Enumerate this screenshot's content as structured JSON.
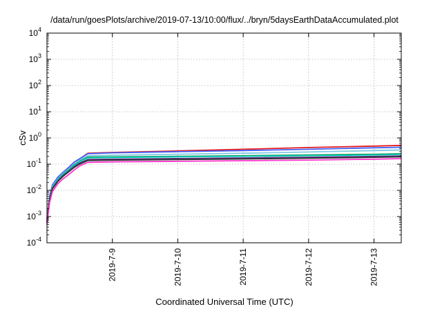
{
  "chart_data": {
    "type": "line",
    "title": "/data/run/goesPlots/archive/2019-07-13/10:00/flux/../bryn/5daysEarthDataAccumulated.plot",
    "xlabel": "Coordinated Universal Time (UTC)",
    "ylabel": "cSv",
    "y_scale": "log",
    "ylim": [
      0.0001,
      10000
    ],
    "xlim": [
      "2019-07-08T00:00",
      "2019-07-13T10:00"
    ],
    "grid": true,
    "legend": "none",
    "y_ticks": [
      {
        "value": 0.0001,
        "base": "10",
        "exp": "-4"
      },
      {
        "value": 0.001,
        "base": "10",
        "exp": "-3"
      },
      {
        "value": 0.01,
        "base": "10",
        "exp": "-2"
      },
      {
        "value": 0.1,
        "base": "10",
        "exp": "-1"
      },
      {
        "value": 1,
        "base": "10",
        "exp": "0"
      },
      {
        "value": 10,
        "base": "10",
        "exp": "1"
      },
      {
        "value": 100,
        "base": "10",
        "exp": "2"
      },
      {
        "value": 1000,
        "base": "10",
        "exp": "3"
      },
      {
        "value": 10000,
        "base": "10",
        "exp": "4"
      }
    ],
    "x_ticks": [
      {
        "value": "2019-07-09T00:00",
        "label": "2019-7-9"
      },
      {
        "value": "2019-07-10T00:00",
        "label": "2019-7-10"
      },
      {
        "value": "2019-07-11T00:00",
        "label": "2019-7-11"
      },
      {
        "value": "2019-07-12T00:00",
        "label": "2019-7-12"
      },
      {
        "value": "2019-07-13T00:00",
        "label": "2019-7-13"
      }
    ],
    "series": [
      {
        "color": "#e41a1c",
        "points": [
          [
            "2019-07-08T00:00",
            0.0008
          ],
          [
            "2019-07-08T01:00",
            0.006
          ],
          [
            "2019-07-08T02:00",
            0.016
          ],
          [
            "2019-07-08T04:00",
            0.032
          ],
          [
            "2019-07-08T06:00",
            0.05
          ],
          [
            "2019-07-08T08:00",
            0.075
          ],
          [
            "2019-07-08T10:00",
            0.12
          ],
          [
            "2019-07-08T12:00",
            0.16
          ],
          [
            "2019-07-08T15:00",
            0.26
          ],
          [
            "2019-07-09T00:00",
            0.28
          ],
          [
            "2019-07-10T00:00",
            0.32
          ],
          [
            "2019-07-11T00:00",
            0.37
          ],
          [
            "2019-07-12T00:00",
            0.43
          ],
          [
            "2019-07-13T00:00",
            0.49
          ],
          [
            "2019-07-13T10:00",
            0.52
          ]
        ]
      },
      {
        "color": "#4060ff",
        "points": [
          [
            "2019-07-08T00:00",
            0.0008
          ],
          [
            "2019-07-08T01:00",
            0.006
          ],
          [
            "2019-07-08T02:00",
            0.016
          ],
          [
            "2019-07-08T04:00",
            0.032
          ],
          [
            "2019-07-08T06:00",
            0.05
          ],
          [
            "2019-07-08T08:00",
            0.075
          ],
          [
            "2019-07-08T10:00",
            0.12
          ],
          [
            "2019-07-08T12:00",
            0.16
          ],
          [
            "2019-07-08T15:00",
            0.25
          ],
          [
            "2019-07-09T00:00",
            0.27
          ],
          [
            "2019-07-10T00:00",
            0.3
          ],
          [
            "2019-07-11T00:00",
            0.33
          ],
          [
            "2019-07-12T00:00",
            0.37
          ],
          [
            "2019-07-13T00:00",
            0.42
          ],
          [
            "2019-07-13T10:00",
            0.44
          ]
        ]
      },
      {
        "color": "#7ec8e3",
        "points": [
          [
            "2019-07-08T00:00",
            0.0007
          ],
          [
            "2019-07-08T01:00",
            0.005
          ],
          [
            "2019-07-08T02:00",
            0.014
          ],
          [
            "2019-07-08T04:00",
            0.028
          ],
          [
            "2019-07-08T06:00",
            0.045
          ],
          [
            "2019-07-08T08:00",
            0.065
          ],
          [
            "2019-07-08T10:00",
            0.1
          ],
          [
            "2019-07-08T12:00",
            0.14
          ],
          [
            "2019-07-08T15:00",
            0.21
          ],
          [
            "2019-07-09T00:00",
            0.22
          ],
          [
            "2019-07-10T00:00",
            0.24
          ],
          [
            "2019-07-11T00:00",
            0.26
          ],
          [
            "2019-07-12T00:00",
            0.29
          ],
          [
            "2019-07-13T00:00",
            0.33
          ],
          [
            "2019-07-13T10:00",
            0.35
          ]
        ]
      },
      {
        "color": "#1a9850",
        "points": [
          [
            "2019-07-08T00:00",
            0.0007
          ],
          [
            "2019-07-08T01:00",
            0.005
          ],
          [
            "2019-07-08T02:00",
            0.013
          ],
          [
            "2019-07-08T04:00",
            0.026
          ],
          [
            "2019-07-08T06:00",
            0.042
          ],
          [
            "2019-07-08T08:00",
            0.06
          ],
          [
            "2019-07-08T10:00",
            0.095
          ],
          [
            "2019-07-08T12:00",
            0.13
          ],
          [
            "2019-07-08T15:00",
            0.185
          ],
          [
            "2019-07-09T00:00",
            0.19
          ],
          [
            "2019-07-10T00:00",
            0.2
          ],
          [
            "2019-07-11T00:00",
            0.21
          ],
          [
            "2019-07-12T00:00",
            0.225
          ],
          [
            "2019-07-13T00:00",
            0.24
          ],
          [
            "2019-07-13T10:00",
            0.25
          ]
        ]
      },
      {
        "color": "#00c8b4",
        "points": [
          [
            "2019-07-08T00:00",
            0.0007
          ],
          [
            "2019-07-08T01:00",
            0.005
          ],
          [
            "2019-07-08T02:00",
            0.013
          ],
          [
            "2019-07-08T04:00",
            0.025
          ],
          [
            "2019-07-08T06:00",
            0.04
          ],
          [
            "2019-07-08T08:00",
            0.058
          ],
          [
            "2019-07-08T10:00",
            0.09
          ],
          [
            "2019-07-08T12:00",
            0.125
          ],
          [
            "2019-07-08T15:00",
            0.175
          ],
          [
            "2019-07-09T00:00",
            0.18
          ],
          [
            "2019-07-10T00:00",
            0.19
          ],
          [
            "2019-07-11T00:00",
            0.2
          ],
          [
            "2019-07-12T00:00",
            0.212
          ],
          [
            "2019-07-13T00:00",
            0.225
          ],
          [
            "2019-07-13T10:00",
            0.235
          ]
        ]
      },
      {
        "color": "#5a2a82",
        "points": [
          [
            "2019-07-08T00:00",
            0.0006
          ],
          [
            "2019-07-08T01:00",
            0.0045
          ],
          [
            "2019-07-08T02:00",
            0.012
          ],
          [
            "2019-07-08T04:00",
            0.023
          ],
          [
            "2019-07-08T06:00",
            0.037
          ],
          [
            "2019-07-08T08:00",
            0.054
          ],
          [
            "2019-07-08T10:00",
            0.08
          ],
          [
            "2019-07-08T12:00",
            0.11
          ],
          [
            "2019-07-08T15:00",
            0.15
          ],
          [
            "2019-07-09T00:00",
            0.155
          ],
          [
            "2019-07-10T00:00",
            0.163
          ],
          [
            "2019-07-11T00:00",
            0.172
          ],
          [
            "2019-07-12T00:00",
            0.183
          ],
          [
            "2019-07-13T00:00",
            0.197
          ],
          [
            "2019-07-13T10:00",
            0.205
          ]
        ]
      },
      {
        "color": "#333333",
        "points": [
          [
            "2019-07-08T00:00",
            0.0006
          ],
          [
            "2019-07-08T01:00",
            0.0043
          ],
          [
            "2019-07-08T02:00",
            0.0115
          ],
          [
            "2019-07-08T04:00",
            0.022
          ],
          [
            "2019-07-08T06:00",
            0.035
          ],
          [
            "2019-07-08T08:00",
            0.051
          ],
          [
            "2019-07-08T10:00",
            0.075
          ],
          [
            "2019-07-08T12:00",
            0.1
          ],
          [
            "2019-07-08T15:00",
            0.138
          ],
          [
            "2019-07-09T00:00",
            0.142
          ],
          [
            "2019-07-10T00:00",
            0.15
          ],
          [
            "2019-07-11T00:00",
            0.158
          ],
          [
            "2019-07-12T00:00",
            0.168
          ],
          [
            "2019-07-13T00:00",
            0.182
          ],
          [
            "2019-07-13T10:00",
            0.19
          ]
        ]
      },
      {
        "color": "#ff33cc",
        "points": [
          [
            "2019-07-08T00:00",
            0.0005
          ],
          [
            "2019-07-08T01:00",
            0.0035
          ],
          [
            "2019-07-08T02:00",
            0.009
          ],
          [
            "2019-07-08T04:00",
            0.018
          ],
          [
            "2019-07-08T06:00",
            0.028
          ],
          [
            "2019-07-08T08:00",
            0.04
          ],
          [
            "2019-07-08T10:00",
            0.06
          ],
          [
            "2019-07-08T12:00",
            0.085
          ],
          [
            "2019-07-08T15:00",
            0.118
          ],
          [
            "2019-07-09T00:00",
            0.122
          ],
          [
            "2019-07-10T00:00",
            0.128
          ],
          [
            "2019-07-11T00:00",
            0.135
          ],
          [
            "2019-07-12T00:00",
            0.143
          ],
          [
            "2019-07-13T00:00",
            0.155
          ],
          [
            "2019-07-13T10:00",
            0.162
          ]
        ]
      }
    ]
  }
}
